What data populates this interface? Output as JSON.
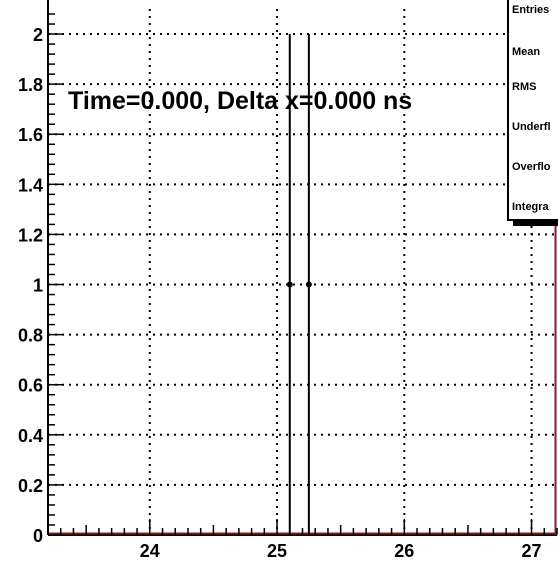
{
  "chart_data": {
    "type": "scatter",
    "title": "",
    "xlabel": "",
    "ylabel": "",
    "xlim": [
      23.2,
      27.2
    ],
    "ylim": [
      0,
      2.1
    ],
    "x_ticks": [
      24,
      25,
      26,
      27
    ],
    "x_tick_labels": [
      "24",
      "25",
      "26",
      "27"
    ],
    "y_ticks": [
      0,
      0.2,
      0.4,
      0.6,
      0.8,
      1,
      1.2,
      1.4,
      1.6,
      1.8,
      2
    ],
    "y_tick_labels": [
      "0",
      "0.2",
      "0.4",
      "0.6",
      "0.8",
      "1",
      "1.2",
      "1.4",
      "1.6",
      "1.8",
      "2"
    ],
    "grid": true,
    "series": [
      {
        "points": [
          {
            "x": 25.1,
            "y": 1,
            "ylow": 0,
            "yhigh": 2
          },
          {
            "x": 25.25,
            "y": 1,
            "ylow": 0,
            "yhigh": 2
          }
        ]
      }
    ],
    "annotation": "Time=0.000, Delta x=0.000 ns",
    "stats_box": {
      "labels": [
        "Entries",
        "Mean",
        "RMS",
        "Underflow",
        "Overflow",
        "Integral"
      ],
      "visible_labels": [
        "Entries",
        "Mean",
        "RMS",
        "Underfl",
        "Overflo",
        "Integra"
      ]
    },
    "colors": {
      "axis": "#000000",
      "histogram_line": "#8b1a1a",
      "grid": "#000000"
    }
  }
}
